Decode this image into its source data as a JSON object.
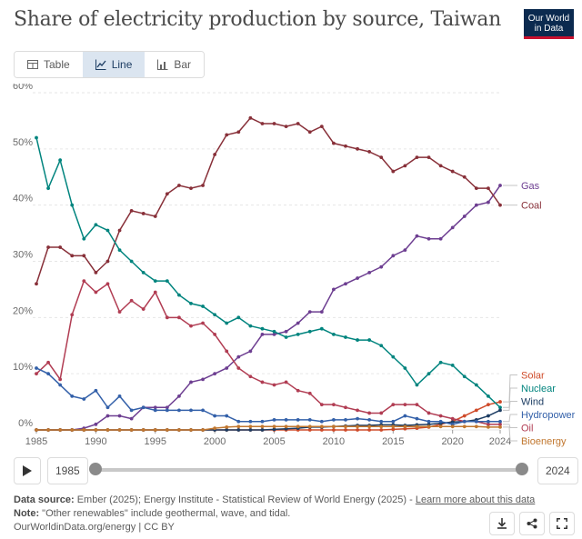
{
  "title": "Share of electricity production by source, Taiwan",
  "logo": {
    "line1": "Our World",
    "line2": "in Data"
  },
  "tabs": [
    {
      "label": "Table",
      "icon": "table-icon"
    },
    {
      "label": "Line",
      "icon": "line-chart-icon",
      "active": true
    },
    {
      "label": "Bar",
      "icon": "bar-chart-icon"
    }
  ],
  "timeline": {
    "start_label": "1985",
    "end_label": "2024"
  },
  "footer": {
    "source_label": "Data source:",
    "source_text": "Ember (2025); Energy Institute - Statistical Review of World Energy (2025) - ",
    "source_link": "Learn more about this data",
    "note_label": "Note:",
    "note_text": "\"Other renewables\" include geothermal, wave, and tidal.",
    "credit": "OurWorldinData.org/energy | CC BY"
  },
  "colors": {
    "accent": "#1d3d63",
    "active_tab_bg": "#dbe5f0"
  },
  "chart_data": {
    "type": "line",
    "ylim": [
      0,
      60
    ],
    "y_ticks": [
      "0%",
      "10%",
      "20%",
      "30%",
      "40%",
      "50%",
      "60%"
    ],
    "y_tick_values": [
      0,
      10,
      20,
      30,
      40,
      50,
      60
    ],
    "x_range": [
      1985,
      2024
    ],
    "x_ticks": [
      "1985",
      "1990",
      "1995",
      "2000",
      "2005",
      "2010",
      "2015",
      "2020",
      "2024"
    ],
    "x_tick_values": [
      1985,
      1990,
      1995,
      2000,
      2005,
      2010,
      2015,
      2020,
      2024
    ],
    "x": [
      1985,
      1986,
      1987,
      1988,
      1989,
      1990,
      1991,
      1992,
      1993,
      1994,
      1995,
      1996,
      1997,
      1998,
      1999,
      2000,
      2001,
      2002,
      2003,
      2004,
      2005,
      2006,
      2007,
      2008,
      2009,
      2010,
      2011,
      2012,
      2013,
      2014,
      2015,
      2016,
      2017,
      2018,
      2019,
      2020,
      2021,
      2022,
      2023,
      2024
    ],
    "series": [
      {
        "name": "Gas",
        "color": "#6d3e91",
        "values": [
          0,
          0,
          0,
          0,
          0.3,
          1,
          2.5,
          2.5,
          2,
          4,
          4,
          4,
          6,
          8.5,
          9,
          10,
          11,
          13,
          14,
          17,
          17,
          17.5,
          19,
          21,
          21,
          25,
          26,
          27,
          28,
          29,
          31,
          32,
          34.5,
          34,
          34,
          36,
          38,
          40,
          40.5,
          43.5
        ]
      },
      {
        "name": "Coal",
        "color": "#883039",
        "values": [
          26,
          32.5,
          32.5,
          31,
          31,
          28,
          30,
          35.5,
          39,
          38.5,
          38,
          42,
          43.5,
          43,
          43.5,
          49,
          52.5,
          53,
          55.5,
          54.5,
          54.5,
          54,
          54.5,
          53,
          54,
          51,
          50.5,
          50,
          49.5,
          48.5,
          46,
          47,
          48.5,
          48.5,
          47,
          46,
          45,
          43,
          43,
          40
        ]
      },
      {
        "name": "Solar",
        "color": "#cf4b2a",
        "values": [
          0,
          0,
          0,
          0,
          0,
          0,
          0,
          0,
          0,
          0,
          0,
          0,
          0,
          0,
          0,
          0,
          0,
          0,
          0,
          0,
          0,
          0,
          0,
          0,
          0,
          0,
          0,
          0,
          0,
          0,
          0.1,
          0.2,
          0.3,
          0.5,
          1,
          1.5,
          2.5,
          3.5,
          4.5,
          5
        ]
      },
      {
        "name": "Nuclear",
        "color": "#00847e",
        "values": [
          52,
          43,
          48,
          40,
          34,
          36.5,
          35.5,
          32,
          30,
          28,
          26.5,
          26.5,
          24,
          22.5,
          22,
          20.5,
          19,
          20,
          18.5,
          18,
          17.5,
          16.5,
          17,
          17.5,
          18,
          17,
          16.5,
          16,
          16,
          15,
          13,
          11,
          8,
          10,
          12,
          11.5,
          9.5,
          8,
          6,
          4
        ]
      },
      {
        "name": "Wind",
        "color": "#1d3d63",
        "values": [
          0,
          0,
          0,
          0,
          0,
          0,
          0,
          0,
          0,
          0,
          0,
          0,
          0,
          0,
          0,
          0,
          0,
          0,
          0,
          0,
          0.1,
          0.2,
          0.3,
          0.5,
          0.5,
          0.6,
          0.7,
          0.8,
          0.8,
          0.9,
          0.9,
          0.8,
          0.9,
          1,
          1.2,
          1.4,
          1.5,
          1.8,
          2.5,
          3.5
        ]
      },
      {
        "name": "Oil",
        "color": "#b13d53",
        "values": [
          10,
          12,
          9,
          20.5,
          26.5,
          24.5,
          26,
          21,
          23,
          21.5,
          24.5,
          20,
          20,
          18.5,
          19,
          17,
          14,
          11,
          9.5,
          8.5,
          8,
          8.5,
          7,
          6.5,
          4.5,
          4.5,
          4,
          3.5,
          3,
          3,
          4.5,
          4.5,
          4.5,
          3,
          2.5,
          2,
          1.5,
          1.5,
          1,
          1
        ]
      },
      {
        "name": "Hydropower",
        "color": "#3360a9",
        "values": [
          11,
          10,
          8,
          6,
          5.5,
          7,
          4,
          6,
          3.5,
          4,
          3.5,
          3.5,
          3.5,
          3.5,
          3.5,
          2.5,
          2.5,
          1.5,
          1.5,
          1.5,
          1.8,
          1.8,
          1.8,
          1.8,
          1.5,
          1.8,
          1.8,
          2,
          1.8,
          1.5,
          1.5,
          2.5,
          2,
          1.5,
          1.5,
          1,
          1.5,
          1.5,
          1.5,
          1.5
        ]
      },
      {
        "name": "Bioenergy",
        "color": "#a2559c",
        "values": [
          0,
          0,
          0,
          0,
          0,
          0,
          0,
          0,
          0,
          0,
          0,
          0,
          0,
          0,
          0,
          0.3,
          0.5,
          0.6,
          0.6,
          0.6,
          0.6,
          0.6,
          0.6,
          0.6,
          0.6,
          0.6,
          0.6,
          0.6,
          0.6,
          0.6,
          0.6,
          0.6,
          0.6,
          0.6,
          0.6,
          0.6,
          0.6,
          0.6,
          0.5,
          0.5
        ]
      }
    ],
    "bioenergy_color": "#c1772f"
  }
}
